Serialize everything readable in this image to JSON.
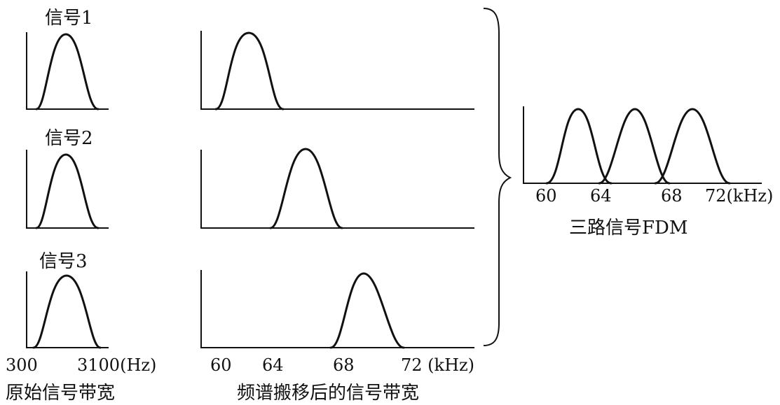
{
  "signals": [
    {
      "label": "信号1"
    },
    {
      "label": "信号2"
    },
    {
      "label": "信号3"
    }
  ],
  "original_axis": {
    "low_label": "300",
    "high_label": "3100(Hz)",
    "caption": "原始信号带宽"
  },
  "shifted_axis": {
    "ticks": [
      "60",
      "64",
      "68",
      "72 (kHz)"
    ],
    "caption": "频谱搬移后的信号带宽"
  },
  "fdm_axis": {
    "ticks": [
      "60",
      "64",
      "68",
      "72(kHz)"
    ],
    "caption": "三路信号FDM"
  }
}
